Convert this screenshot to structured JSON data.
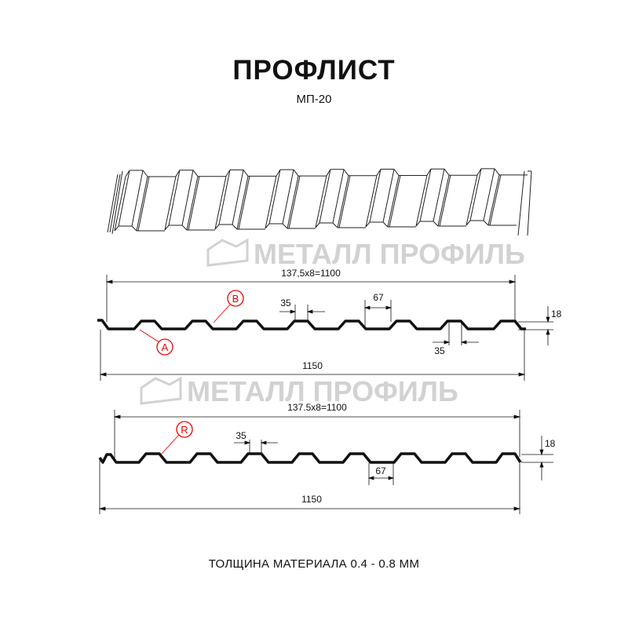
{
  "header": {
    "title": "ПРОФЛИСТ",
    "subtitle": "МП-20"
  },
  "watermark": {
    "text": "МЕТАЛЛ ПРОФИЛЬ"
  },
  "profile_a": {
    "pitch_label": "137,5x8=1100",
    "width_label": "1150",
    "top_flange_label": "35",
    "bottom_flange_label": "35",
    "valley_label": "67",
    "height_label": "18",
    "callout_a": "A",
    "callout_b": "B"
  },
  "profile_r": {
    "pitch_label": "137.5x8=1100",
    "width_label": "1150",
    "top_flange_label": "35",
    "valley_label": "67",
    "height_label": "18",
    "callout_r": "R"
  },
  "footer": {
    "thickness_label": "ТОЛЩИНА МАТЕРИАЛА 0.4 - 0.8 ММ"
  },
  "colors": {
    "line": "#111111",
    "callout": "#e00000",
    "watermark": "#c8c8c8"
  }
}
